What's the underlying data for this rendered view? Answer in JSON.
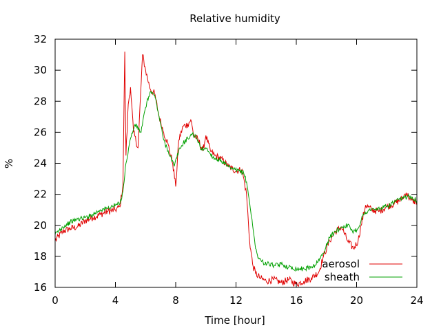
{
  "chart_data": {
    "type": "line",
    "title": "Relative humidity",
    "xlabel": "Time [hour]",
    "ylabel": "%",
    "xlim": [
      0,
      24
    ],
    "ylim": [
      16,
      32
    ],
    "xticks": [
      0,
      4,
      8,
      12,
      16,
      20,
      24
    ],
    "yticks": [
      16,
      18,
      20,
      22,
      24,
      26,
      28,
      30,
      32
    ],
    "grid": false,
    "legend_position": "bottom-right",
    "series": [
      {
        "name": "aerosol",
        "color": "#e00000",
        "points": [
          [
            0,
            19.0
          ],
          [
            0.5,
            19.6
          ],
          [
            1,
            19.8
          ],
          [
            1.5,
            19.9
          ],
          [
            2,
            20.3
          ],
          [
            2.5,
            20.5
          ],
          [
            3,
            20.7
          ],
          [
            3.5,
            20.9
          ],
          [
            4,
            21.0
          ],
          [
            4.3,
            21.2
          ],
          [
            4.5,
            22.6
          ],
          [
            4.62,
            31.2
          ],
          [
            4.7,
            24.5
          ],
          [
            4.85,
            27.8
          ],
          [
            5.0,
            28.9
          ],
          [
            5.2,
            26.0
          ],
          [
            5.5,
            25.0
          ],
          [
            5.8,
            31.0
          ],
          [
            6.0,
            30.0
          ],
          [
            6.3,
            28.8
          ],
          [
            6.6,
            28.5
          ],
          [
            6.9,
            27.0
          ],
          [
            7.2,
            26.0
          ],
          [
            7.5,
            25.2
          ],
          [
            7.8,
            24.0
          ],
          [
            8.0,
            22.5
          ],
          [
            8.2,
            25.5
          ],
          [
            8.5,
            26.4
          ],
          [
            8.8,
            26.5
          ],
          [
            9.0,
            26.8
          ],
          [
            9.2,
            25.8
          ],
          [
            9.5,
            25.5
          ],
          [
            9.8,
            24.8
          ],
          [
            10.0,
            25.8
          ],
          [
            10.3,
            24.8
          ],
          [
            10.6,
            24.5
          ],
          [
            11.0,
            24.3
          ],
          [
            11.5,
            23.8
          ],
          [
            12.0,
            23.5
          ],
          [
            12.4,
            23.6
          ],
          [
            12.7,
            22.0
          ],
          [
            12.9,
            19.0
          ],
          [
            13.1,
            17.5
          ],
          [
            13.3,
            16.9
          ],
          [
            13.6,
            16.6
          ],
          [
            14.0,
            16.4
          ],
          [
            14.5,
            16.5
          ],
          [
            15.0,
            16.3
          ],
          [
            15.5,
            16.5
          ],
          [
            16.0,
            16.2
          ],
          [
            16.5,
            16.4
          ],
          [
            17.0,
            16.6
          ],
          [
            17.5,
            17.0
          ],
          [
            17.8,
            18.0
          ],
          [
            18.2,
            19.0
          ],
          [
            18.6,
            19.6
          ],
          [
            19.0,
            19.9
          ],
          [
            19.4,
            19.0
          ],
          [
            19.8,
            18.5
          ],
          [
            20.1,
            19.0
          ],
          [
            20.3,
            20.0
          ],
          [
            20.6,
            21.3
          ],
          [
            21.0,
            21.0
          ],
          [
            21.5,
            20.9
          ],
          [
            22.0,
            21.2
          ],
          [
            22.5,
            21.4
          ],
          [
            23.0,
            21.7
          ],
          [
            23.3,
            22.1
          ],
          [
            23.6,
            21.6
          ],
          [
            24.0,
            21.5
          ]
        ]
      },
      {
        "name": "sheath",
        "color": "#00a000",
        "points": [
          [
            0,
            19.4
          ],
          [
            0.5,
            19.9
          ],
          [
            1,
            20.2
          ],
          [
            1.5,
            20.4
          ],
          [
            2,
            20.5
          ],
          [
            2.5,
            20.7
          ],
          [
            3,
            21.0
          ],
          [
            3.5,
            21.1
          ],
          [
            4,
            21.3
          ],
          [
            4.3,
            21.4
          ],
          [
            4.5,
            22.2
          ],
          [
            4.7,
            24.0
          ],
          [
            5.0,
            25.6
          ],
          [
            5.3,
            26.5
          ],
          [
            5.7,
            26.0
          ],
          [
            6.0,
            27.6
          ],
          [
            6.3,
            28.6
          ],
          [
            6.6,
            28.4
          ],
          [
            6.9,
            27.0
          ],
          [
            7.2,
            25.5
          ],
          [
            7.5,
            24.8
          ],
          [
            7.9,
            23.8
          ],
          [
            8.2,
            24.8
          ],
          [
            8.5,
            25.3
          ],
          [
            8.8,
            25.6
          ],
          [
            9.1,
            25.9
          ],
          [
            9.4,
            25.6
          ],
          [
            9.7,
            24.9
          ],
          [
            10.0,
            25.0
          ],
          [
            10.3,
            24.6
          ],
          [
            10.6,
            24.3
          ],
          [
            11.0,
            24.2
          ],
          [
            11.4,
            23.8
          ],
          [
            11.8,
            23.6
          ],
          [
            12.2,
            23.5
          ],
          [
            12.5,
            23.4
          ],
          [
            12.7,
            22.8
          ],
          [
            12.9,
            21.5
          ],
          [
            13.1,
            20.0
          ],
          [
            13.3,
            18.5
          ],
          [
            13.5,
            17.9
          ],
          [
            13.8,
            17.6
          ],
          [
            14.2,
            17.5
          ],
          [
            14.6,
            17.4
          ],
          [
            15.0,
            17.5
          ],
          [
            15.5,
            17.3
          ],
          [
            16.0,
            17.2
          ],
          [
            16.5,
            17.2
          ],
          [
            17.0,
            17.3
          ],
          [
            17.4,
            17.6
          ],
          [
            17.8,
            18.2
          ],
          [
            18.2,
            19.2
          ],
          [
            18.6,
            19.6
          ],
          [
            19.0,
            19.9
          ],
          [
            19.4,
            20.0
          ],
          [
            19.8,
            19.6
          ],
          [
            20.1,
            19.8
          ],
          [
            20.4,
            20.6
          ],
          [
            20.8,
            21.0
          ],
          [
            21.2,
            21.0
          ],
          [
            21.6,
            21.1
          ],
          [
            22.0,
            21.2
          ],
          [
            22.5,
            21.5
          ],
          [
            23.0,
            21.7
          ],
          [
            23.4,
            21.9
          ],
          [
            23.7,
            21.8
          ],
          [
            24.0,
            21.6
          ]
        ]
      }
    ]
  }
}
